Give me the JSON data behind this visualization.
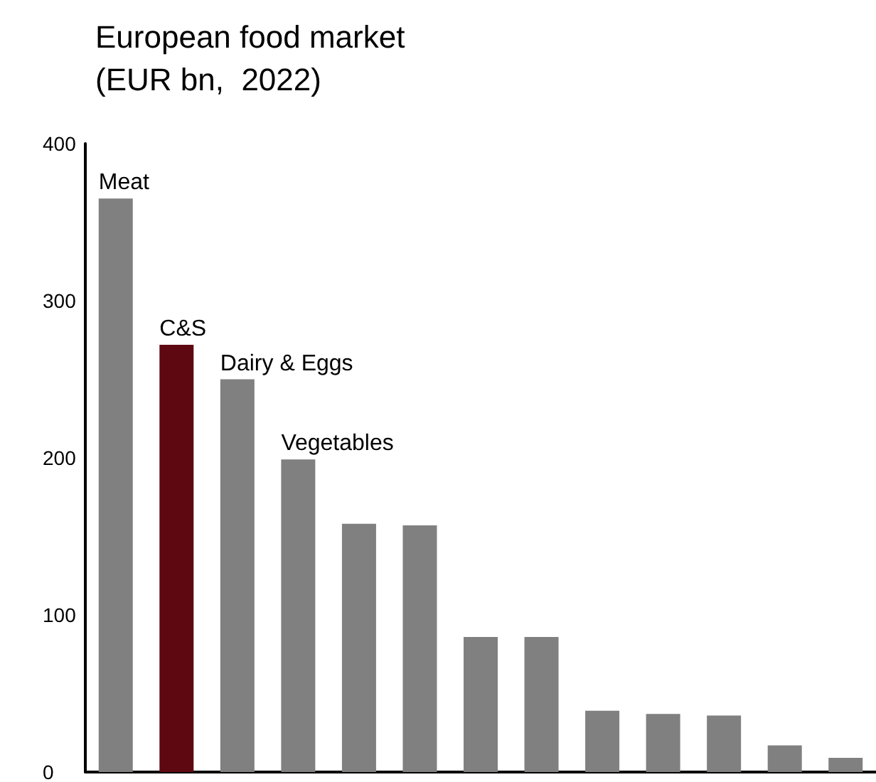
{
  "chart_data": {
    "type": "bar",
    "title": "European food market",
    "subtitle": "(EUR bn,  2022)",
    "categories": [
      null,
      null,
      null,
      null,
      null,
      null,
      null,
      null,
      null,
      null,
      null,
      null,
      null
    ],
    "values": [
      365,
      272,
      250,
      199,
      158,
      157,
      86,
      86,
      39,
      37,
      36,
      17,
      9
    ],
    "colors": [
      "#808080",
      "#5e0812",
      "#808080",
      "#808080",
      "#808080",
      "#808080",
      "#808080",
      "#808080",
      "#808080",
      "#808080",
      "#808080",
      "#808080",
      "#808080"
    ],
    "annotations": [
      "Meat",
      "C&S",
      "Dairy & Eggs",
      "Vegetables"
    ],
    "ylim": [
      0,
      400
    ],
    "yticks": [
      0,
      100,
      200,
      300,
      400
    ],
    "grid": false,
    "tick_labels": "y"
  }
}
